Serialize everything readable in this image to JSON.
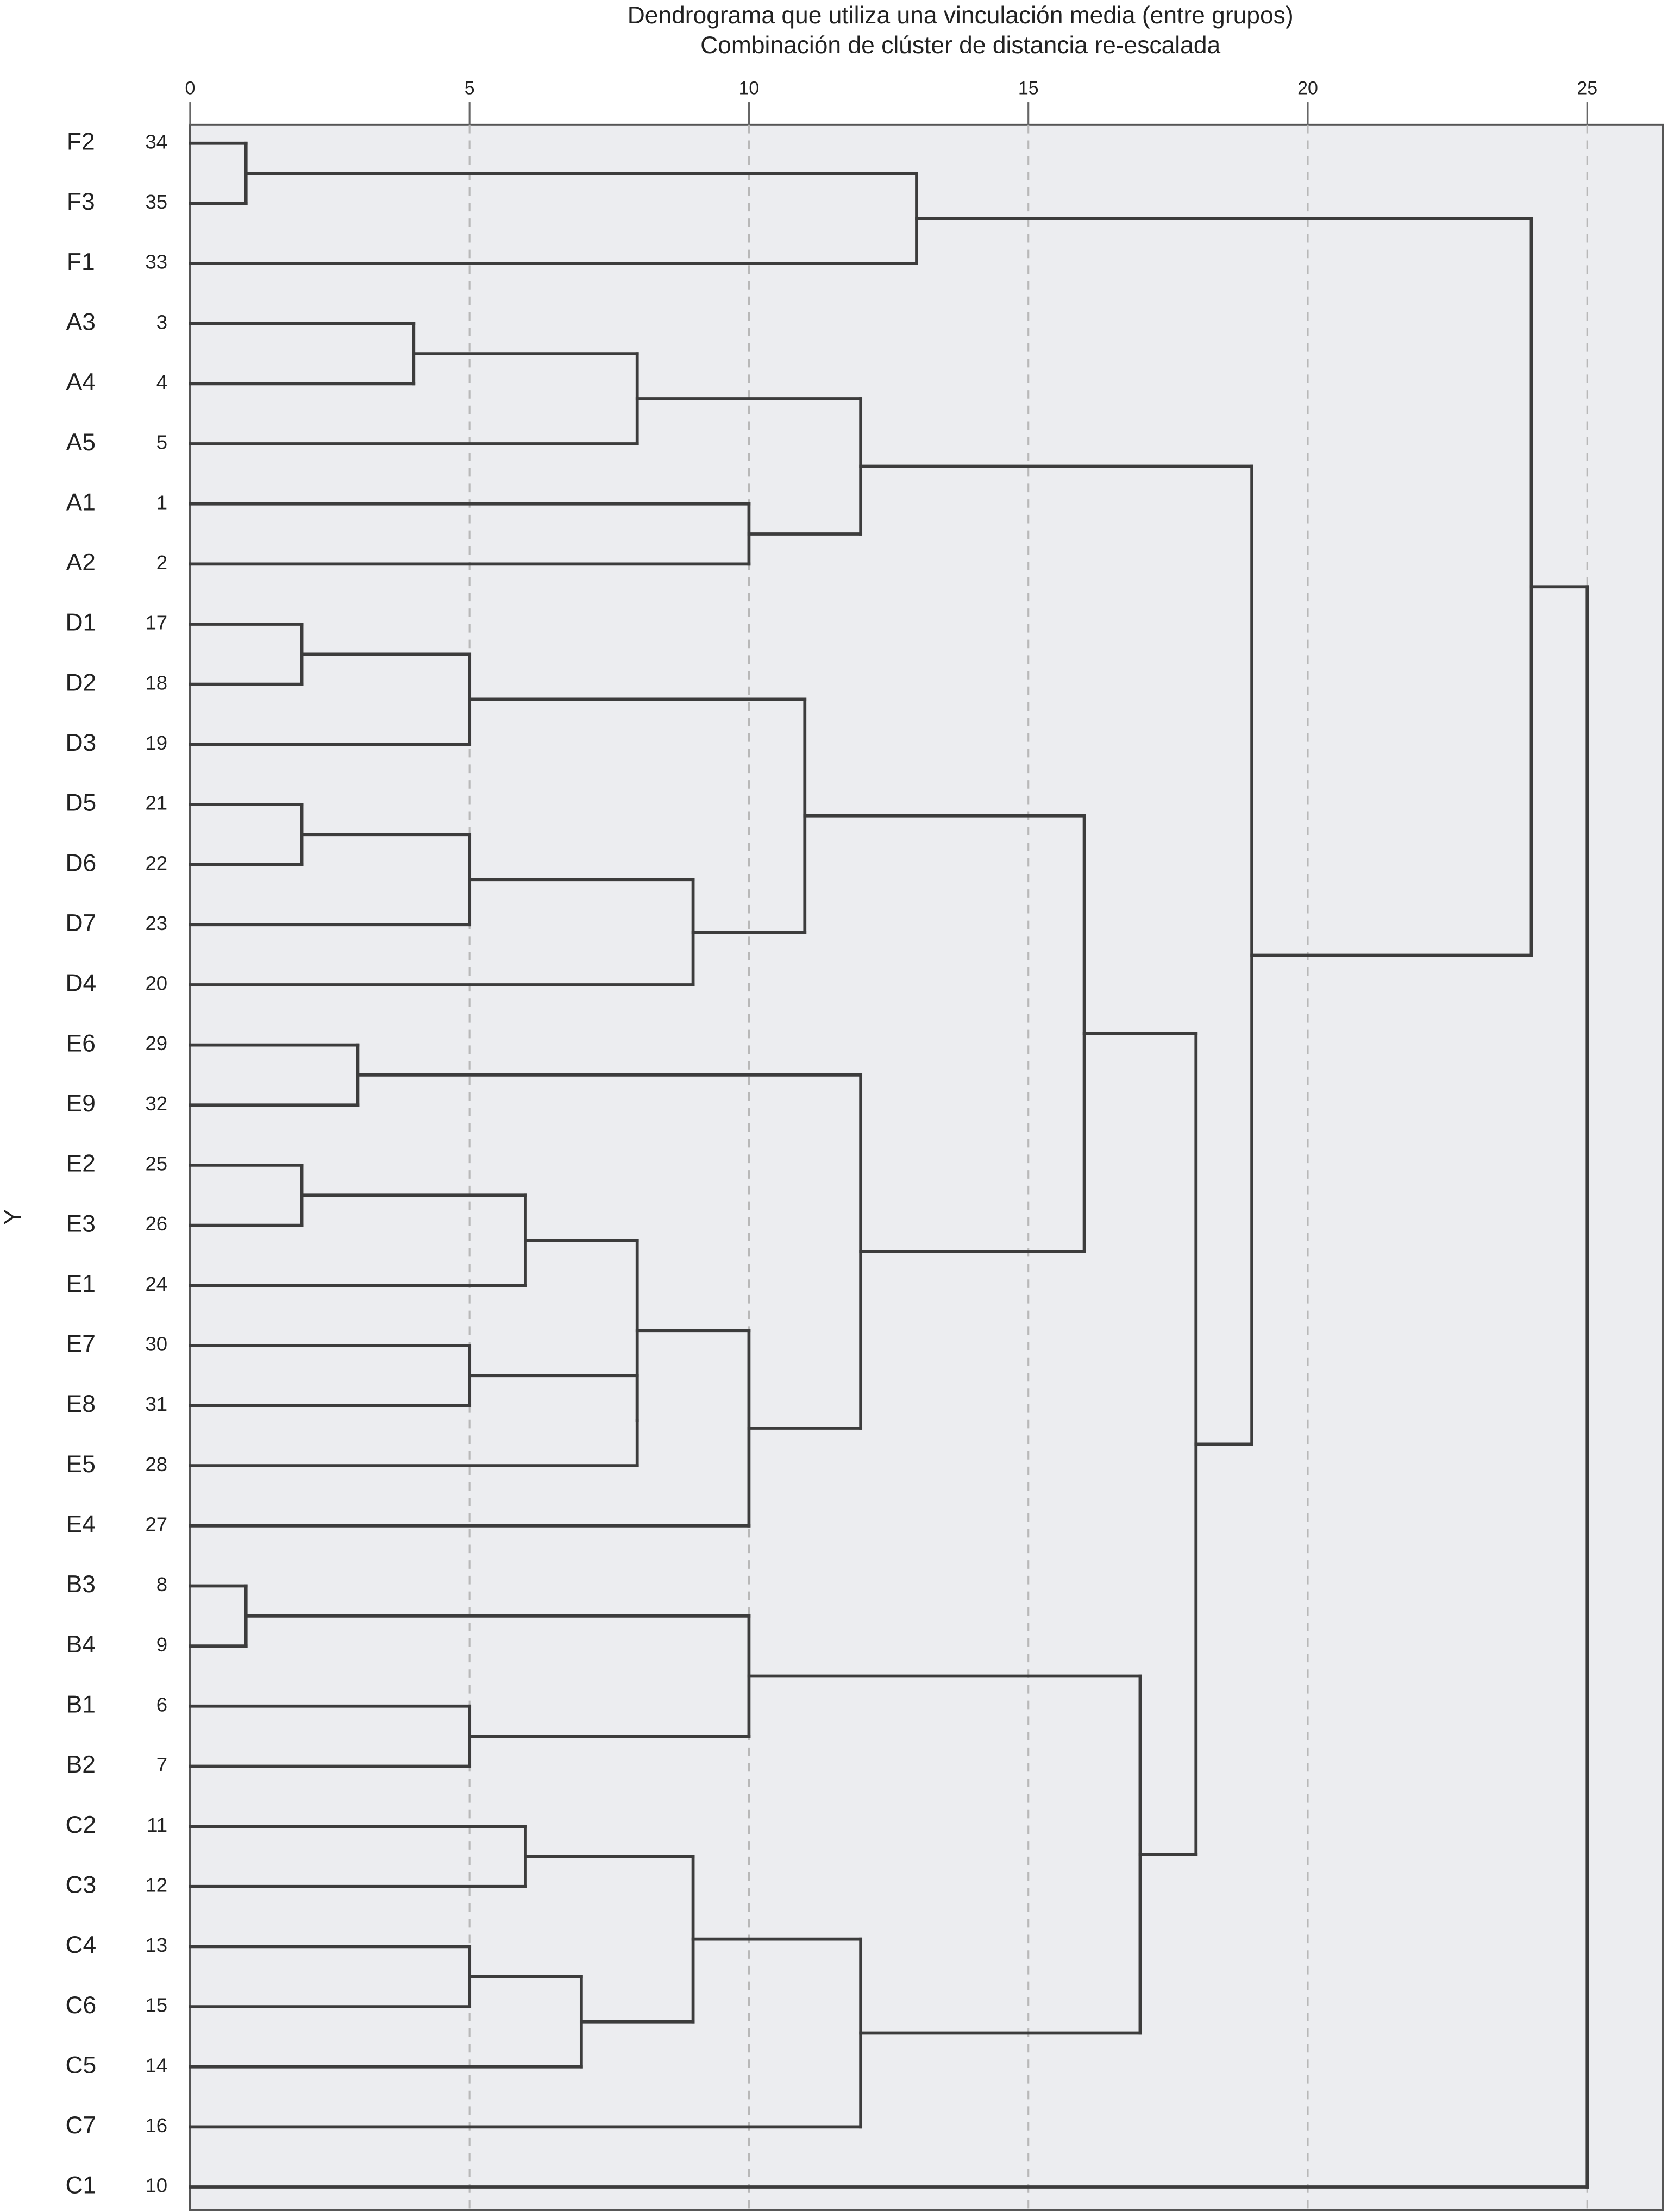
{
  "chart_data": {
    "type": "dendrogram",
    "title": "Dendrograma que utiliza una vinculación media (entre grupos)",
    "subtitle": "Combinación de clúster de distancia re-escalada",
    "ylabel": "Y",
    "xlim": [
      0,
      26.35
    ],
    "xticks": [
      0,
      5,
      10,
      15,
      20,
      25
    ],
    "grid": true,
    "tree": {
      "height": 25,
      "children": [
        {
          "height": 24,
          "children": [
            {
              "height": 13,
              "children": [
                {
                  "height": 1,
                  "children": [
                    {
                      "label": "F2",
                      "number": 34
                    },
                    {
                      "label": "F3",
                      "number": 35
                    }
                  ]
                },
                {
                  "label": "F1",
                  "number": 33
                }
              ]
            },
            {
              "height": 19,
              "children": [
                {
                  "height": 12,
                  "children": [
                    {
                      "height": 8,
                      "children": [
                        {
                          "height": 4,
                          "children": [
                            {
                              "label": "A3",
                              "number": 3
                            },
                            {
                              "label": "A4",
                              "number": 4
                            }
                          ]
                        },
                        {
                          "label": "A5",
                          "number": 5
                        }
                      ]
                    },
                    {
                      "height": 10,
                      "children": [
                        {
                          "label": "A1",
                          "number": 1
                        },
                        {
                          "label": "A2",
                          "number": 2
                        }
                      ]
                    }
                  ]
                },
                {
                  "height": 18,
                  "children": [
                    {
                      "height": 16,
                      "children": [
                        {
                          "height": 11,
                          "children": [
                            {
                              "height": 5,
                              "children": [
                                {
                                  "height": 2,
                                  "children": [
                                    {
                                      "label": "D1",
                                      "number": 17
                                    },
                                    {
                                      "label": "D2",
                                      "number": 18
                                    }
                                  ]
                                },
                                {
                                  "label": "D3",
                                  "number": 19
                                }
                              ]
                            },
                            {
                              "height": 9,
                              "children": [
                                {
                                  "height": 5,
                                  "children": [
                                    {
                                      "height": 2,
                                      "children": [
                                        {
                                          "label": "D5",
                                          "number": 21
                                        },
                                        {
                                          "label": "D6",
                                          "number": 22
                                        }
                                      ]
                                    },
                                    {
                                      "label": "D7",
                                      "number": 23
                                    }
                                  ]
                                },
                                {
                                  "label": "D4",
                                  "number": 20
                                }
                              ]
                            }
                          ]
                        },
                        {
                          "height": 12,
                          "children": [
                            {
                              "height": 3,
                              "children": [
                                {
                                  "label": "E6",
                                  "number": 29
                                },
                                {
                                  "label": "E9",
                                  "number": 32
                                }
                              ]
                            },
                            {
                              "height": 10,
                              "children": [
                                {
                                  "height": 8,
                                  "children": [
                                    {
                                      "height": 6,
                                      "children": [
                                        {
                                          "height": 2,
                                          "children": [
                                            {
                                              "label": "E2",
                                              "number": 25
                                            },
                                            {
                                              "label": "E3",
                                              "number": 26
                                            }
                                          ]
                                        },
                                        {
                                          "label": "E1",
                                          "number": 24
                                        }
                                      ]
                                    },
                                    {
                                      "height": 8,
                                      "children": [
                                        {
                                          "height": 5,
                                          "children": [
                                            {
                                              "label": "E7",
                                              "number": 30
                                            },
                                            {
                                              "label": "E8",
                                              "number": 31
                                            }
                                          ]
                                        },
                                        {
                                          "label": "E5",
                                          "number": 28
                                        }
                                      ]
                                    }
                                  ]
                                },
                                {
                                  "label": "E4",
                                  "number": 27
                                }
                              ]
                            }
                          ]
                        }
                      ]
                    },
                    {
                      "height": 17,
                      "children": [
                        {
                          "height": 10,
                          "children": [
                            {
                              "height": 1,
                              "children": [
                                {
                                  "label": "B3",
                                  "number": 8
                                },
                                {
                                  "label": "B4",
                                  "number": 9
                                }
                              ]
                            },
                            {
                              "height": 5,
                              "children": [
                                {
                                  "label": "B1",
                                  "number": 6
                                },
                                {
                                  "label": "B2",
                                  "number": 7
                                }
                              ]
                            }
                          ]
                        },
                        {
                          "height": 12,
                          "children": [
                            {
                              "height": 9,
                              "children": [
                                {
                                  "height": 6,
                                  "children": [
                                    {
                                      "label": "C2",
                                      "number": 11
                                    },
                                    {
                                      "label": "C3",
                                      "number": 12
                                    }
                                  ]
                                },
                                {
                                  "height": 7,
                                  "children": [
                                    {
                                      "height": 5,
                                      "children": [
                                        {
                                          "label": "C4",
                                          "number": 13
                                        },
                                        {
                                          "label": "C6",
                                          "number": 15
                                        }
                                      ]
                                    },
                                    {
                                      "label": "C5",
                                      "number": 14
                                    }
                                  ]
                                }
                              ]
                            },
                            {
                              "label": "C7",
                              "number": 16
                            }
                          ]
                        }
                      ]
                    }
                  ]
                }
              ]
            }
          ]
        },
        {
          "label": "C1",
          "number": 10
        }
      ]
    }
  }
}
